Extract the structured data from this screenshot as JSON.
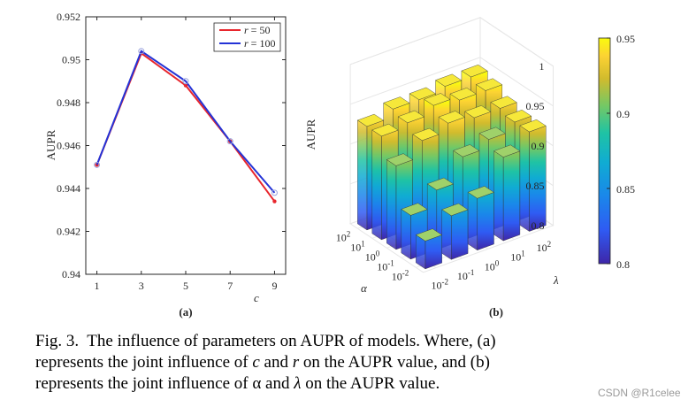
{
  "chart_data": [
    {
      "type": "line",
      "panel_label": "(a)",
      "x": [
        1,
        3,
        5,
        7,
        9
      ],
      "xlabel": "c",
      "ylabel": "AUPR",
      "xlim": [
        0.5,
        9.5
      ],
      "ylim": [
        0.94,
        0.952
      ],
      "xticks": [
        "1",
        "3",
        "5",
        "7",
        "9"
      ],
      "yticks": [
        "0.94",
        "0.942",
        "0.944",
        "0.946",
        "0.948",
        "0.95",
        "0.952"
      ],
      "legend_position": "top-right",
      "series": [
        {
          "name": "r = 50",
          "legend_var": "r",
          "legend_value": "= 50",
          "color": "#e8262d",
          "values": [
            0.9451,
            0.9503,
            0.9488,
            0.9462,
            0.9434
          ]
        },
        {
          "name": "r = 100",
          "legend_var": "r",
          "legend_value": "= 100",
          "color": "#2433d6",
          "values": [
            0.9451,
            0.9504,
            0.949,
            0.9462,
            0.9438
          ]
        }
      ]
    },
    {
      "type": "bar3d",
      "panel_label": "(b)",
      "zlabel": "AUPR",
      "zlim": [
        0.8,
        1.0
      ],
      "zticks": [
        "0.8",
        "0.85",
        "0.9",
        "0.95",
        "1"
      ],
      "alpha_label": "α",
      "lambda_label": "λ",
      "alpha_ticks": [
        {
          "base": "10",
          "exp": "-2"
        },
        {
          "base": "10",
          "exp": "-1"
        },
        {
          "base": "10",
          "exp": "0"
        },
        {
          "base": "10",
          "exp": "1"
        },
        {
          "base": "10",
          "exp": "2"
        }
      ],
      "lambda_ticks": [
        {
          "base": "10",
          "exp": "-2"
        },
        {
          "base": "10",
          "exp": "-1"
        },
        {
          "base": "10",
          "exp": "0"
        },
        {
          "base": "10",
          "exp": "1"
        },
        {
          "base": "10",
          "exp": "2"
        }
      ],
      "colorbar": {
        "min": 0.8,
        "max": 0.95,
        "ticks": [
          "0.8",
          "0.85",
          "0.9",
          "0.95"
        ]
      },
      "values_alpha_by_lambda": [
        [
          0.835,
          0.855,
          0.865,
          0.905,
          0.925
        ],
        [
          0.855,
          0.875,
          0.905,
          0.915,
          0.925
        ],
        [
          0.905,
          0.925,
          0.935,
          0.93,
          0.93
        ],
        [
          0.93,
          0.935,
          0.945,
          0.94,
          0.94
        ],
        [
          0.93,
          0.94,
          0.94,
          0.945,
          0.945
        ]
      ]
    }
  ],
  "caption": {
    "fig": "Fig. 3.",
    "line1": "The influence of parameters on AUPR of models. Where, (a)",
    "line2_a": "represents the joint influence of",
    "line2_c": "c",
    "line2_and": "and",
    "line2_r": "r",
    "line2_b": "on the AUPR value, and (b)",
    "line3_a": "represents the joint influence of α and",
    "line3_l": "λ",
    "line3_b": "on the AUPR value."
  },
  "watermark": "CSDN @R1celee"
}
